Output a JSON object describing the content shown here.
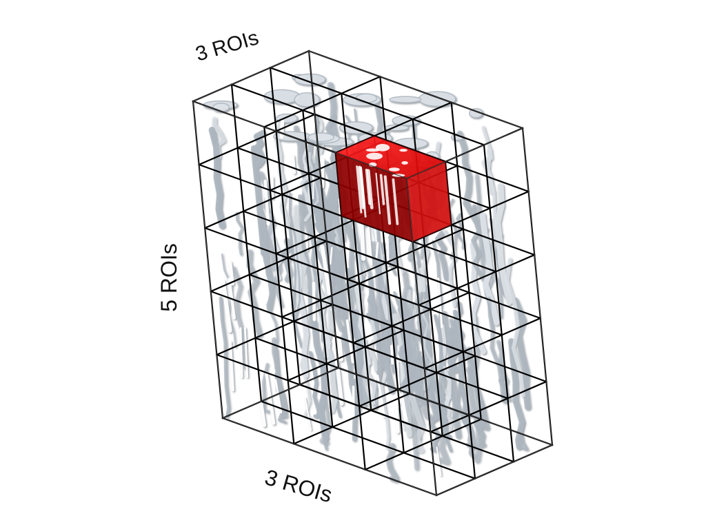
{
  "labels": {
    "top": "3 ROIs",
    "left": "5 ROIs",
    "bottom": "3 ROIs"
  },
  "grid": {
    "columns": 3,
    "rows": 5,
    "depth": 3
  },
  "highlight": {
    "column": 2,
    "row": 0,
    "depth": 0,
    "color": "#c90000"
  },
  "colors": {
    "structure": "#aeb7c0",
    "structure_light": "#dde3e8",
    "grid_line": "#000000",
    "outline": "#444444"
  }
}
